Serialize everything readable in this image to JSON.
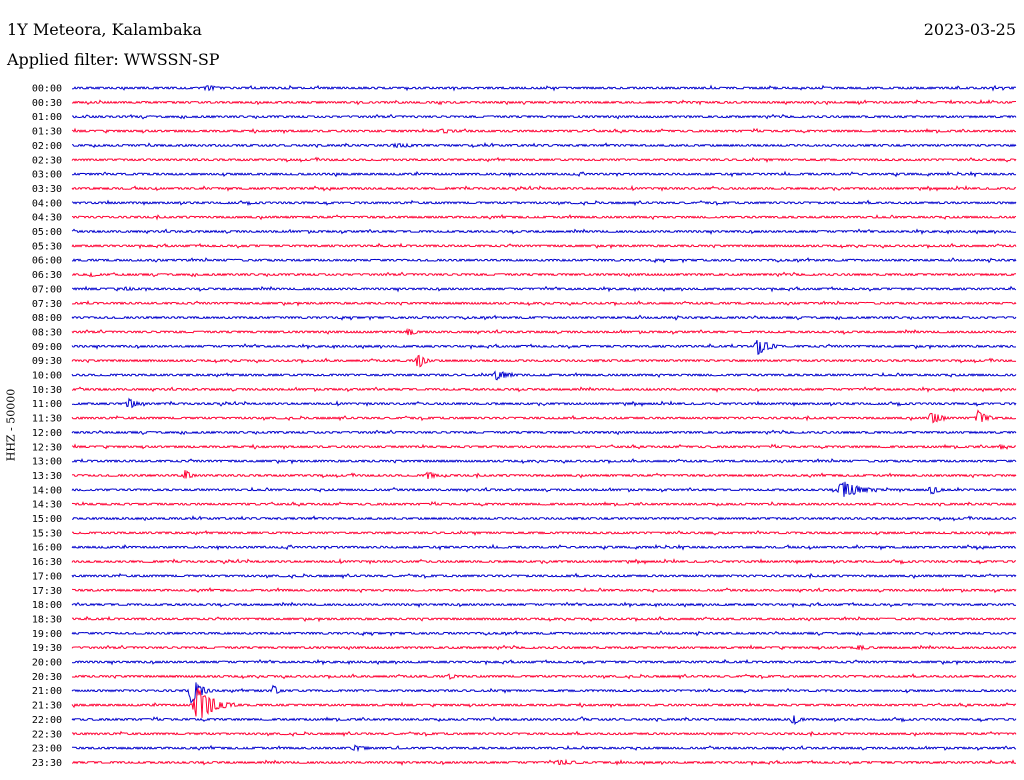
{
  "header": {
    "station": "1Y Meteora, Kalambaka",
    "filter": "Applied filter: WWSSN-SP",
    "date": "2023-03-25"
  },
  "colors": {
    "even_rows": "#0000cc",
    "odd_rows": "#ff0033",
    "noise_blue": "#0000cc",
    "noise_red": "#ff0033"
  },
  "chart_data": {
    "type": "line",
    "title": "1Y Meteora, Kalambaka",
    "subtitle": "Applied filter: WWSSN-SP",
    "date": "2023-03-25",
    "ylabel": "HHZ - 50000",
    "row_labels": [
      "00:00",
      "00:30",
      "01:00",
      "01:30",
      "02:00",
      "02:30",
      "03:00",
      "03:30",
      "04:00",
      "04:30",
      "05:00",
      "05:30",
      "06:00",
      "06:30",
      "07:00",
      "07:30",
      "08:00",
      "08:30",
      "09:00",
      "09:30",
      "10:00",
      "10:30",
      "11:00",
      "11:30",
      "12:00",
      "12:30",
      "13:00",
      "13:30",
      "14:00",
      "14:30",
      "15:00",
      "15:30",
      "16:00",
      "16:30",
      "17:00",
      "17:30",
      "18:00",
      "18:30",
      "19:00",
      "19:30",
      "20:00",
      "20:30",
      "21:00",
      "21:30",
      "22:00",
      "22:30",
      "23:00",
      "23:30"
    ],
    "x_range_minutes": [
      0,
      30
    ],
    "series_colors": [
      "#0000cc",
      "#ff0033"
    ],
    "events": [
      {
        "row": "00:00",
        "minute": 4.3,
        "amplitude": 3,
        "duration_min": 1.2
      },
      {
        "row": "00:00",
        "minute": 22.3,
        "amplitude": 1.5,
        "duration_min": 0.8
      },
      {
        "row": "01:30",
        "minute": 11.8,
        "amplitude": 2.5,
        "duration_min": 1.5
      },
      {
        "row": "02:00",
        "minute": 10.3,
        "amplitude": 2.5,
        "duration_min": 2.5
      },
      {
        "row": "06:30",
        "minute": 0.6,
        "amplitude": 2.5,
        "duration_min": 1.0
      },
      {
        "row": "07:00",
        "minute": 1.7,
        "amplitude": 2.5,
        "duration_min": 0.8
      },
      {
        "row": "08:30",
        "minute": 10.7,
        "amplitude": 4,
        "duration_min": 0.8
      },
      {
        "row": "09:00",
        "minute": 21.8,
        "amplitude": 9,
        "duration_min": 1.0
      },
      {
        "row": "09:30",
        "minute": 11.0,
        "amplitude": 9,
        "duration_min": 0.6
      },
      {
        "row": "10:00",
        "minute": 13.5,
        "amplitude": 5,
        "duration_min": 1.2
      },
      {
        "row": "11:00",
        "minute": 1.8,
        "amplitude": 6,
        "duration_min": 0.8
      },
      {
        "row": "11:30",
        "minute": 27.3,
        "amplitude": 9,
        "duration_min": 0.8
      },
      {
        "row": "11:30",
        "minute": 28.8,
        "amplitude": 9,
        "duration_min": 0.8
      },
      {
        "row": "12:30",
        "minute": 29.5,
        "amplitude": 3,
        "duration_min": 0.4
      },
      {
        "row": "13:30",
        "minute": 3.6,
        "amplitude": 6,
        "duration_min": 0.6
      },
      {
        "row": "13:30",
        "minute": 11.3,
        "amplitude": 6,
        "duration_min": 0.6
      },
      {
        "row": "14:00",
        "minute": 24.5,
        "amplitude": 10,
        "duration_min": 1.5
      },
      {
        "row": "14:00",
        "minute": 27.3,
        "amplitude": 5,
        "duration_min": 0.9
      },
      {
        "row": "19:30",
        "minute": 25.0,
        "amplitude": 2.5,
        "duration_min": 1.3
      },
      {
        "row": "20:30",
        "minute": 12.0,
        "amplitude": 3,
        "duration_min": 0.8
      },
      {
        "row": "21:00",
        "minute": 3.8,
        "amplitude": 16,
        "duration_min": 0.8
      },
      {
        "row": "21:00",
        "minute": 6.4,
        "amplitude": 6,
        "duration_min": 0.5
      },
      {
        "row": "21:30",
        "minute": 4.0,
        "amplitude": 18,
        "duration_min": 1.4
      },
      {
        "row": "22:00",
        "minute": 22.9,
        "amplitude": 7,
        "duration_min": 0.6
      },
      {
        "row": "22:00",
        "minute": 16.2,
        "amplitude": 3,
        "duration_min": 0.4
      },
      {
        "row": "23:00",
        "minute": 9.0,
        "amplitude": 3,
        "duration_min": 1.5
      },
      {
        "row": "23:30",
        "minute": 15.5,
        "amplitude": 3,
        "duration_min": 2.0
      }
    ]
  }
}
